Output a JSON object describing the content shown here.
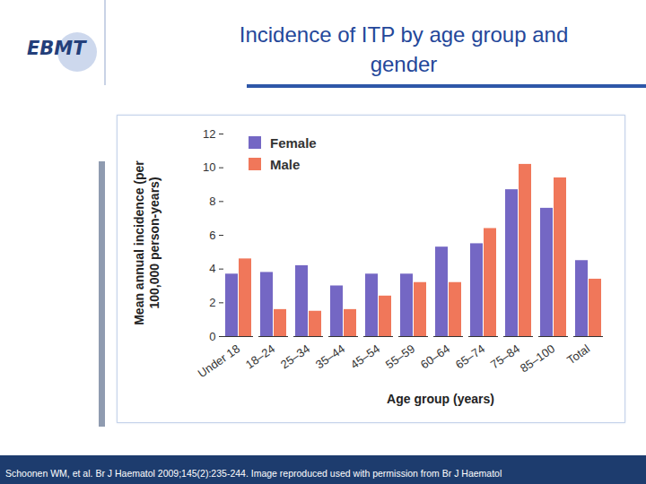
{
  "logo": "EBMT",
  "caption": "Schoonen WM, et al. Br J Haematol 2009;145(2):235-244. Image reproduced used with permission from Br J Haematol",
  "chart_data": {
    "type": "bar",
    "title": "Incidence of ITP by age group and gender",
    "x_label": "Age group (years)",
    "y_label": "Mean annual incidence (per 100,000 person-years)",
    "categories": [
      "Under 18",
      "18–24",
      "25–34",
      "35–44",
      "45–54",
      "55–59",
      "60–64",
      "65–74",
      "75–84",
      "85–100",
      "Total"
    ],
    "series": [
      {
        "name": "Female",
        "color": "#7467c4",
        "values": [
          3.7,
          3.8,
          4.2,
          3.0,
          3.7,
          3.7,
          5.3,
          5.5,
          8.7,
          7.6,
          4.5
        ]
      },
      {
        "name": "Male",
        "color": "#f0775a",
        "values": [
          4.6,
          1.6,
          1.5,
          1.6,
          2.4,
          3.2,
          3.2,
          6.4,
          10.2,
          9.4,
          3.4
        ]
      }
    ],
    "ylim": [
      0,
      12
    ],
    "yticks": [
      0,
      2,
      4,
      6,
      8,
      10,
      12
    ],
    "grid": false,
    "legend": "top-left"
  }
}
